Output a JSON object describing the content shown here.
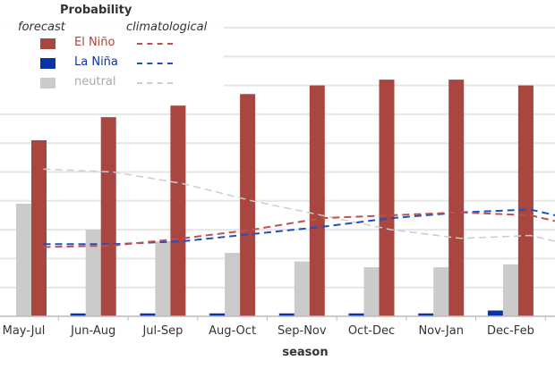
{
  "chart_data": {
    "type": "bar",
    "xlabel": "season",
    "ylabel": "",
    "ylim": [
      0,
      100
    ],
    "grid": true,
    "categories": [
      "May-Jul",
      "Jun-Aug",
      "Jul-Sep",
      "Aug-Oct",
      "Sep-Nov",
      "Oct-Dec",
      "Nov-Jan",
      "Dec-Feb"
    ],
    "series": [
      {
        "name": "La Niña",
        "kind": "forecast",
        "color": "#0a33a8",
        "values": [
          0,
          1,
          1,
          1,
          1,
          1,
          1,
          2
        ]
      },
      {
        "name": "neutral",
        "kind": "forecast",
        "color": "#cbcbcb",
        "values": [
          39,
          30,
          26,
          22,
          19,
          17,
          17,
          18
        ]
      },
      {
        "name": "El Niño",
        "kind": "forecast",
        "color": "#a8463f",
        "values": [
          61,
          69,
          73,
          77,
          80,
          82,
          82,
          80
        ]
      }
    ],
    "climatological": [
      {
        "name": "El Niño",
        "color": "#c0504d",
        "values": [
          24,
          24.5,
          27,
          30,
          34,
          35,
          36,
          35
        ]
      },
      {
        "name": "La Niña",
        "color": "#2050c0",
        "values": [
          25,
          25,
          26,
          28.5,
          31,
          34,
          36,
          37
        ]
      },
      {
        "name": "neutral",
        "color": "#cccccc",
        "values": [
          51,
          50,
          46,
          40,
          35,
          30,
          27,
          28
        ]
      }
    ],
    "legend": {
      "title": "Probability",
      "forecast_label": "forecast",
      "climatological_label": "climatological",
      "position": "top-left"
    }
  }
}
